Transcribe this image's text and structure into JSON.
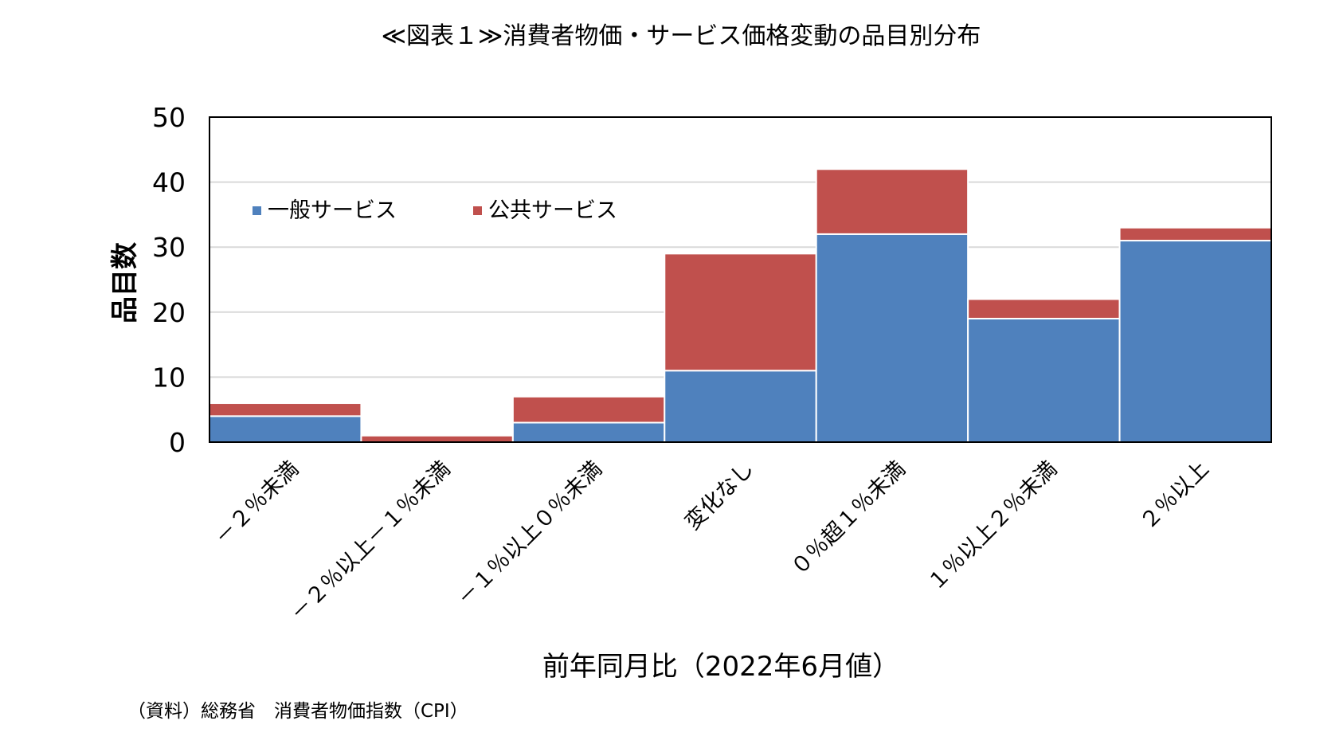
{
  "chart_data": {
    "type": "bar",
    "stacked": true,
    "title": "≪図表１≫消費者物価・サービス価格変動の品目別分布",
    "xlabel": "前年同月比（2022年6月値）",
    "ylabel": "品目数",
    "ylim": [
      0,
      50
    ],
    "yticks": [
      "0",
      "10",
      "20",
      "30",
      "40",
      "50"
    ],
    "grid": true,
    "legend_position": "top-left",
    "categories": [
      "－２％未満",
      "－２％以上－１％未満",
      "－１％以上０％未満",
      "変化なし",
      "０％超１％未満",
      "１％以上２％未満",
      "２％以上"
    ],
    "series": [
      {
        "name": "一般サービス",
        "color": "#4f81bd",
        "values": [
          4,
          0,
          3,
          11,
          32,
          19,
          31
        ]
      },
      {
        "name": "公共サービス",
        "color": "#c0504d",
        "values": [
          2,
          1,
          4,
          18,
          10,
          3,
          2
        ]
      }
    ],
    "source": "（資料）総務省　消費者物価指数（CPI）"
  }
}
